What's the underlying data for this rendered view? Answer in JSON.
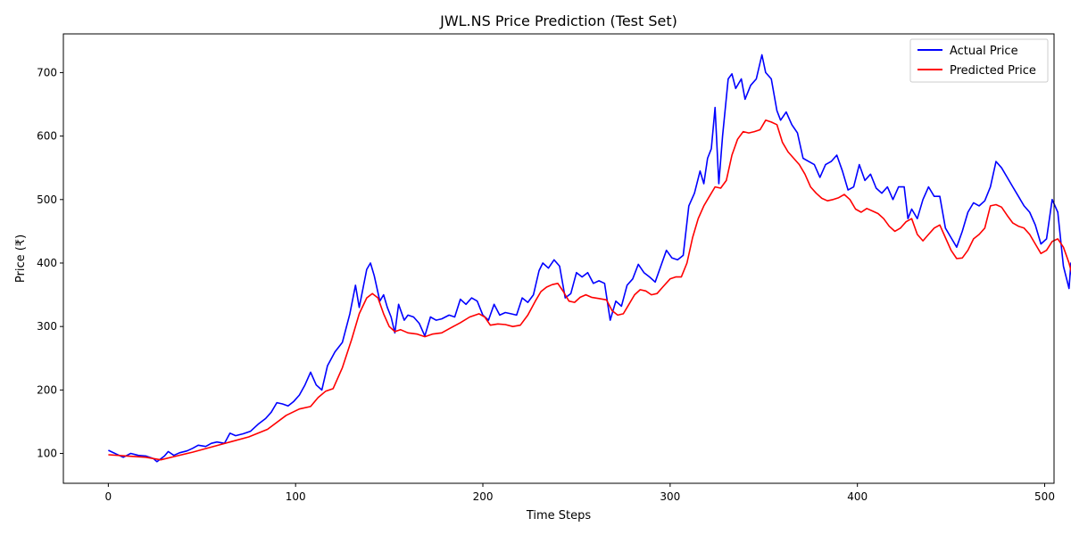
{
  "chart_data": {
    "type": "line",
    "title": "JWL.NS Price Prediction (Test Set)",
    "xlabel": "Time Steps",
    "ylabel": "Price (₹)",
    "xlim": [
      -24,
      505
    ],
    "ylim": [
      53,
      761
    ],
    "xticks": [
      0,
      100,
      200,
      300,
      400,
      500
    ],
    "yticks": [
      100,
      200,
      300,
      400,
      500,
      600,
      700
    ],
    "grid": false,
    "legend": "top-right",
    "series": [
      {
        "name": "Actual Price",
        "color": "#0000ff",
        "points": [
          [
            0,
            105
          ],
          [
            5,
            98
          ],
          [
            8,
            94
          ],
          [
            12,
            100
          ],
          [
            16,
            97
          ],
          [
            20,
            96
          ],
          [
            24,
            92
          ],
          [
            26,
            87
          ],
          [
            30,
            96
          ],
          [
            32,
            103
          ],
          [
            35,
            97
          ],
          [
            38,
            101
          ],
          [
            42,
            104
          ],
          [
            45,
            108
          ],
          [
            48,
            113
          ],
          [
            52,
            111
          ],
          [
            55,
            116
          ],
          [
            58,
            118
          ],
          [
            62,
            116
          ],
          [
            65,
            132
          ],
          [
            68,
            128
          ],
          [
            72,
            131
          ],
          [
            76,
            135
          ],
          [
            80,
            146
          ],
          [
            84,
            155
          ],
          [
            87,
            165
          ],
          [
            90,
            180
          ],
          [
            93,
            178
          ],
          [
            96,
            175
          ],
          [
            99,
            182
          ],
          [
            102,
            192
          ],
          [
            105,
            208
          ],
          [
            108,
            228
          ],
          [
            111,
            208
          ],
          [
            114,
            200
          ],
          [
            117,
            238
          ],
          [
            121,
            260
          ],
          [
            125,
            275
          ],
          [
            129,
            320
          ],
          [
            132,
            365
          ],
          [
            134,
            330
          ],
          [
            136,
            360
          ],
          [
            138,
            390
          ],
          [
            140,
            400
          ],
          [
            142,
            380
          ],
          [
            145,
            340
          ],
          [
            147,
            350
          ],
          [
            149,
            330
          ],
          [
            151,
            315
          ],
          [
            153,
            290
          ],
          [
            155,
            335
          ],
          [
            158,
            310
          ],
          [
            160,
            318
          ],
          [
            163,
            315
          ],
          [
            166,
            305
          ],
          [
            169,
            285
          ],
          [
            172,
            315
          ],
          [
            175,
            310
          ],
          [
            178,
            312
          ],
          [
            182,
            318
          ],
          [
            185,
            315
          ],
          [
            188,
            343
          ],
          [
            191,
            335
          ],
          [
            194,
            345
          ],
          [
            197,
            340
          ],
          [
            200,
            318
          ],
          [
            203,
            310
          ],
          [
            206,
            335
          ],
          [
            209,
            318
          ],
          [
            212,
            322
          ],
          [
            215,
            320
          ],
          [
            218,
            318
          ],
          [
            221,
            345
          ],
          [
            224,
            338
          ],
          [
            227,
            350
          ],
          [
            230,
            388
          ],
          [
            232,
            400
          ],
          [
            235,
            392
          ],
          [
            238,
            405
          ],
          [
            241,
            395
          ],
          [
            244,
            345
          ],
          [
            247,
            352
          ],
          [
            250,
            385
          ],
          [
            253,
            378
          ],
          [
            256,
            385
          ],
          [
            259,
            368
          ],
          [
            262,
            372
          ],
          [
            265,
            368
          ],
          [
            268,
            310
          ],
          [
            271,
            340
          ],
          [
            274,
            332
          ],
          [
            277,
            365
          ],
          [
            280,
            375
          ],
          [
            283,
            398
          ],
          [
            286,
            385
          ],
          [
            289,
            378
          ],
          [
            292,
            370
          ],
          [
            295,
            395
          ],
          [
            298,
            420
          ],
          [
            301,
            408
          ],
          [
            304,
            405
          ],
          [
            307,
            412
          ],
          [
            310,
            490
          ],
          [
            313,
            510
          ],
          [
            316,
            545
          ],
          [
            318,
            525
          ],
          [
            320,
            565
          ],
          [
            322,
            580
          ],
          [
            324,
            645
          ],
          [
            326,
            525
          ],
          [
            328,
            600
          ],
          [
            331,
            690
          ],
          [
            333,
            698
          ],
          [
            335,
            675
          ],
          [
            338,
            690
          ],
          [
            340,
            658
          ],
          [
            343,
            680
          ],
          [
            346,
            690
          ],
          [
            349,
            728
          ],
          [
            351,
            700
          ],
          [
            354,
            690
          ],
          [
            357,
            640
          ],
          [
            359,
            625
          ],
          [
            362,
            638
          ],
          [
            365,
            618
          ],
          [
            368,
            605
          ],
          [
            371,
            565
          ],
          [
            374,
            560
          ],
          [
            377,
            555
          ],
          [
            380,
            535
          ],
          [
            383,
            555
          ],
          [
            386,
            560
          ],
          [
            389,
            570
          ],
          [
            392,
            545
          ],
          [
            395,
            515
          ],
          [
            398,
            520
          ],
          [
            401,
            555
          ],
          [
            404,
            530
          ],
          [
            407,
            540
          ],
          [
            410,
            518
          ],
          [
            413,
            510
          ],
          [
            416,
            520
          ],
          [
            419,
            500
          ],
          [
            422,
            520
          ],
          [
            425,
            520
          ],
          [
            427,
            470
          ],
          [
            429,
            485
          ],
          [
            432,
            470
          ],
          [
            435,
            500
          ],
          [
            438,
            520
          ],
          [
            441,
            505
          ],
          [
            444,
            505
          ],
          [
            447,
            455
          ],
          [
            450,
            440
          ],
          [
            453,
            425
          ],
          [
            456,
            450
          ],
          [
            459,
            480
          ],
          [
            462,
            495
          ],
          [
            465,
            490
          ],
          [
            468,
            498
          ],
          [
            471,
            520
          ],
          [
            474,
            560
          ],
          [
            477,
            550
          ],
          [
            480,
            535
          ],
          [
            483,
            520
          ],
          [
            486,
            505
          ],
          [
            489,
            490
          ],
          [
            492,
            480
          ],
          [
            495,
            460
          ],
          [
            498,
            430
          ],
          [
            501,
            438
          ],
          [
            504,
            500
          ],
          [
            507,
            480
          ],
          [
            510,
            395
          ],
          [
            513,
            360
          ],
          [
            514,
            400
          ],
          [
            515,
            352
          ]
        ]
      },
      {
        "name": "Predicted Price",
        "color": "#ff0000",
        "points": [
          [
            0,
            98
          ],
          [
            10,
            96
          ],
          [
            20,
            94
          ],
          [
            28,
            90
          ],
          [
            35,
            95
          ],
          [
            45,
            102
          ],
          [
            55,
            110
          ],
          [
            65,
            118
          ],
          [
            75,
            126
          ],
          [
            85,
            138
          ],
          [
            95,
            160
          ],
          [
            102,
            170
          ],
          [
            108,
            174
          ],
          [
            112,
            188
          ],
          [
            116,
            198
          ],
          [
            120,
            202
          ],
          [
            125,
            235
          ],
          [
            130,
            280
          ],
          [
            134,
            320
          ],
          [
            138,
            345
          ],
          [
            141,
            352
          ],
          [
            144,
            345
          ],
          [
            147,
            320
          ],
          [
            150,
            300
          ],
          [
            153,
            292
          ],
          [
            156,
            295
          ],
          [
            160,
            290
          ],
          [
            165,
            288
          ],
          [
            169,
            284
          ],
          [
            173,
            288
          ],
          [
            178,
            290
          ],
          [
            183,
            298
          ],
          [
            188,
            306
          ],
          [
            193,
            315
          ],
          [
            198,
            320
          ],
          [
            201,
            315
          ],
          [
            204,
            302
          ],
          [
            208,
            304
          ],
          [
            212,
            303
          ],
          [
            216,
            300
          ],
          [
            220,
            302
          ],
          [
            224,
            318
          ],
          [
            228,
            340
          ],
          [
            231,
            355
          ],
          [
            234,
            362
          ],
          [
            237,
            366
          ],
          [
            240,
            368
          ],
          [
            243,
            355
          ],
          [
            246,
            340
          ],
          [
            249,
            338
          ],
          [
            252,
            346
          ],
          [
            255,
            350
          ],
          [
            258,
            346
          ],
          [
            262,
            344
          ],
          [
            266,
            342
          ],
          [
            269,
            325
          ],
          [
            272,
            318
          ],
          [
            275,
            320
          ],
          [
            278,
            335
          ],
          [
            281,
            350
          ],
          [
            284,
            358
          ],
          [
            287,
            356
          ],
          [
            290,
            350
          ],
          [
            293,
            352
          ],
          [
            296,
            362
          ],
          [
            300,
            375
          ],
          [
            303,
            378
          ],
          [
            306,
            378
          ],
          [
            309,
            400
          ],
          [
            312,
            440
          ],
          [
            315,
            470
          ],
          [
            318,
            490
          ],
          [
            321,
            505
          ],
          [
            324,
            520
          ],
          [
            327,
            518
          ],
          [
            330,
            530
          ],
          [
            333,
            570
          ],
          [
            336,
            595
          ],
          [
            339,
            607
          ],
          [
            342,
            605
          ],
          [
            345,
            607
          ],
          [
            348,
            610
          ],
          [
            351,
            625
          ],
          [
            354,
            622
          ],
          [
            357,
            618
          ],
          [
            360,
            590
          ],
          [
            363,
            575
          ],
          [
            366,
            565
          ],
          [
            369,
            555
          ],
          [
            372,
            540
          ],
          [
            375,
            520
          ],
          [
            378,
            510
          ],
          [
            381,
            502
          ],
          [
            384,
            498
          ],
          [
            387,
            500
          ],
          [
            390,
            503
          ],
          [
            393,
            508
          ],
          [
            396,
            500
          ],
          [
            399,
            485
          ],
          [
            402,
            480
          ],
          [
            405,
            486
          ],
          [
            408,
            482
          ],
          [
            411,
            478
          ],
          [
            414,
            470
          ],
          [
            417,
            458
          ],
          [
            420,
            450
          ],
          [
            423,
            455
          ],
          [
            426,
            465
          ],
          [
            429,
            470
          ],
          [
            432,
            445
          ],
          [
            435,
            435
          ],
          [
            438,
            445
          ],
          [
            441,
            455
          ],
          [
            444,
            460
          ],
          [
            447,
            440
          ],
          [
            450,
            420
          ],
          [
            453,
            407
          ],
          [
            456,
            408
          ],
          [
            459,
            420
          ],
          [
            462,
            438
          ],
          [
            465,
            445
          ],
          [
            468,
            455
          ],
          [
            471,
            490
          ],
          [
            474,
            492
          ],
          [
            477,
            488
          ],
          [
            480,
            475
          ],
          [
            483,
            463
          ],
          [
            486,
            458
          ],
          [
            489,
            455
          ],
          [
            492,
            445
          ],
          [
            495,
            430
          ],
          [
            498,
            415
          ],
          [
            501,
            420
          ],
          [
            504,
            434
          ],
          [
            507,
            438
          ],
          [
            510,
            425
          ],
          [
            513,
            400
          ],
          [
            515,
            378
          ]
        ]
      }
    ]
  }
}
